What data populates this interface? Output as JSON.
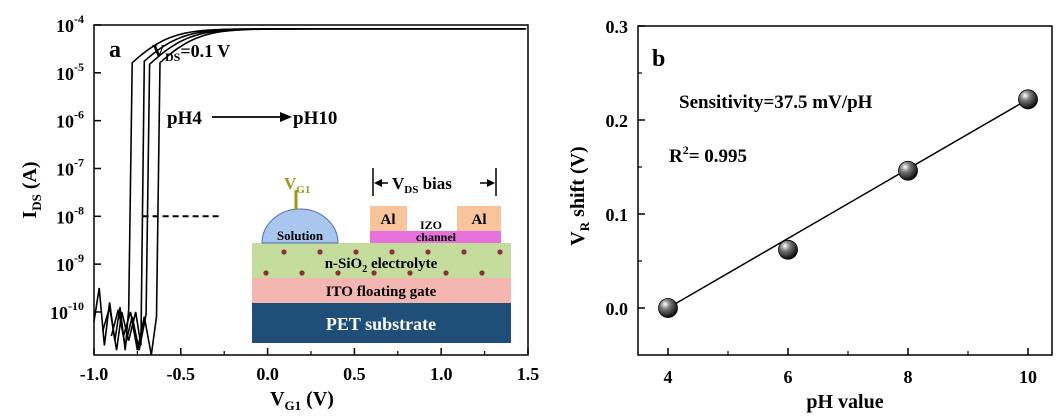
{
  "chart_data": [
    {
      "panel_label": "a",
      "type": "line",
      "xlabel": "V",
      "xlabel_sub": "G1",
      "xlabel_unit": " (V)",
      "ylabel": "I",
      "ylabel_sub": "DS",
      "ylabel_unit": " (A)",
      "xlim": [
        -1.0,
        1.5
      ],
      "ylim_log10": [
        -10.9,
        -4
      ],
      "y_scale": "log",
      "x_ticks": [
        "-1.0",
        "-0.5",
        "0.0",
        "0.5",
        "1.0",
        "1.5"
      ],
      "x_tick_values": [
        -1.0,
        -0.5,
        0.0,
        0.5,
        1.0,
        1.5
      ],
      "y_tick_exponents": [
        "-4",
        "-5",
        "-6",
        "-7",
        "-8",
        "-9",
        "-10"
      ],
      "y_tick_values": [
        -4,
        -5,
        -6,
        -7,
        -8,
        -9,
        -10
      ],
      "annotations": {
        "vds": {
          "main": "V",
          "sub": "DS",
          "rest": "=0.1 V"
        },
        "ph_start": "pH4",
        "ph_end": "pH10",
        "reference_level_log10": -8,
        "reference_x_range": [
          -0.72,
          -0.28
        ]
      },
      "series": [
        {
          "vth": -0.63,
          "points": [
            [
              -1.0,
              -10.2
            ],
            [
              -0.97,
              -9.5
            ],
            [
              -0.94,
              -10.7
            ],
            [
              -0.91,
              -9.8
            ],
            [
              -0.88,
              -10.6
            ],
            [
              -0.85,
              -9.9
            ],
            [
              -0.82,
              -10.8
            ],
            [
              -0.8,
              -9.95
            ]
          ]
        },
        {
          "vth": -0.57,
          "points": [
            [
              -0.95,
              -10.4
            ],
            [
              -0.91,
              -9.9
            ],
            [
              -0.87,
              -10.8
            ],
            [
              -0.84,
              -10.0
            ],
            [
              -0.8,
              -10.6
            ],
            [
              -0.76,
              -10.0
            ],
            [
              -0.73,
              -10.7
            ]
          ]
        },
        {
          "vth": -0.52,
          "points": [
            [
              -0.9,
              -10.5
            ],
            [
              -0.86,
              -9.95
            ],
            [
              -0.82,
              -10.7
            ],
            [
              -0.78,
              -10.1
            ],
            [
              -0.74,
              -10.8
            ],
            [
              -0.7,
              -10.05
            ]
          ]
        },
        {
          "vth": -0.47,
          "points": [
            [
              -0.83,
              -10.5
            ],
            [
              -0.79,
              -10.0
            ],
            [
              -0.75,
              -10.8
            ],
            [
              -0.71,
              -10.1
            ],
            [
              -0.67,
              -10.9
            ],
            [
              -0.64,
              -10.1
            ]
          ]
        }
      ],
      "inset": {
        "gate_label": {
          "main": "V",
          "sub": "G1"
        },
        "bias_label": {
          "main": "V",
          "sub": "DS",
          "rest": " bias"
        },
        "solution": "Solution",
        "al_left": "Al",
        "al_right": "Al",
        "izo": "IZO",
        "channel": "channel",
        "electrolyte_prefix": "n-SiO",
        "electrolyte_sub": "2",
        "electrolyte_suffix": " electrolyte",
        "ito": "ITO floating gate",
        "pet": "PET substrate",
        "colors": {
          "pet": "#1f4e79",
          "ito": "#f4b6b0",
          "electrolyte": "#c4dc9c",
          "solution": "#a9c6ee",
          "al": "#f7c49c",
          "channel": "#e872dc",
          "particle": "#8b2f3c",
          "gate_lead": "#99991a"
        }
      }
    },
    {
      "panel_label": "b",
      "type": "scatter",
      "xlabel": "pH value",
      "ylabel_main": "V",
      "ylabel_sub": "R",
      "ylabel_rest": " shift (V)",
      "xlim": [
        3.5,
        10.4
      ],
      "ylim": [
        -0.05,
        0.3
      ],
      "x_ticks": [
        "4",
        "6",
        "8",
        "10"
      ],
      "x_tick_values": [
        4,
        6,
        8,
        10
      ],
      "y_ticks": [
        "0.0",
        "0.1",
        "0.2",
        "0.3"
      ],
      "y_tick_values": [
        0.0,
        0.1,
        0.2,
        0.3
      ],
      "points": [
        {
          "x": 4,
          "y": 0.0
        },
        {
          "x": 6,
          "y": 0.062
        },
        {
          "x": 8,
          "y": 0.146
        },
        {
          "x": 10,
          "y": 0.222
        }
      ],
      "fit_line": {
        "x": [
          4,
          10
        ],
        "y": [
          0.0,
          0.222
        ]
      },
      "sensitivity_text": "Sensitivity=37.5 mV/pH",
      "r2_main": "R",
      "r2_sup": "2",
      "r2_rest": "= 0.995"
    }
  ]
}
